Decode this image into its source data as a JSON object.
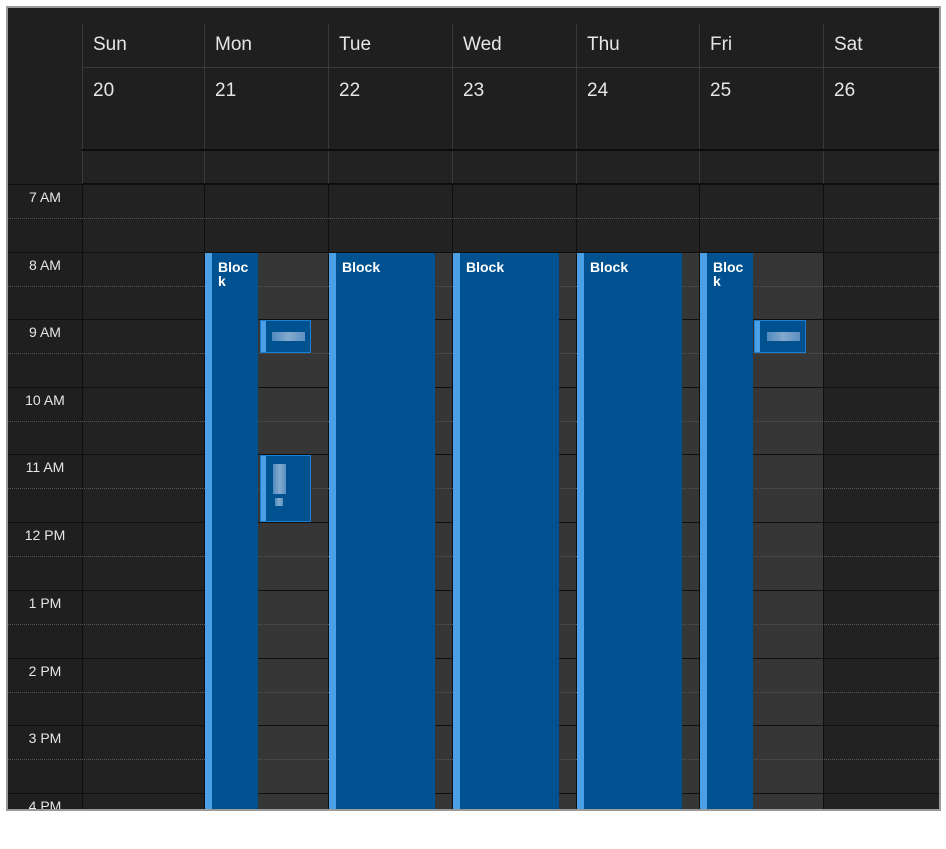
{
  "time_labels": [
    "7 AM",
    "8 AM",
    "9 AM",
    "10 AM",
    "11 AM",
    "12 PM",
    "1 PM",
    "2 PM",
    "3 PM",
    "4 PM"
  ],
  "days": [
    {
      "name": "Sun",
      "date": "20"
    },
    {
      "name": "Mon",
      "date": "21"
    },
    {
      "name": "Tue",
      "date": "22"
    },
    {
      "name": "Wed",
      "date": "23"
    },
    {
      "name": "Thu",
      "date": "24"
    },
    {
      "name": "Fri",
      "date": "25"
    },
    {
      "name": "Sat",
      "date": "26"
    }
  ],
  "events": {
    "mon_block": "Bloc\nk",
    "tue_block": "Block",
    "wed_block": "Block",
    "thu_block": "Block",
    "fri_block": "Bloc\nk"
  },
  "colors": {
    "event_fill": "#00518f",
    "event_accent": "#4b9fe6",
    "work_hours": "#363636",
    "off_hours": "#222222"
  }
}
